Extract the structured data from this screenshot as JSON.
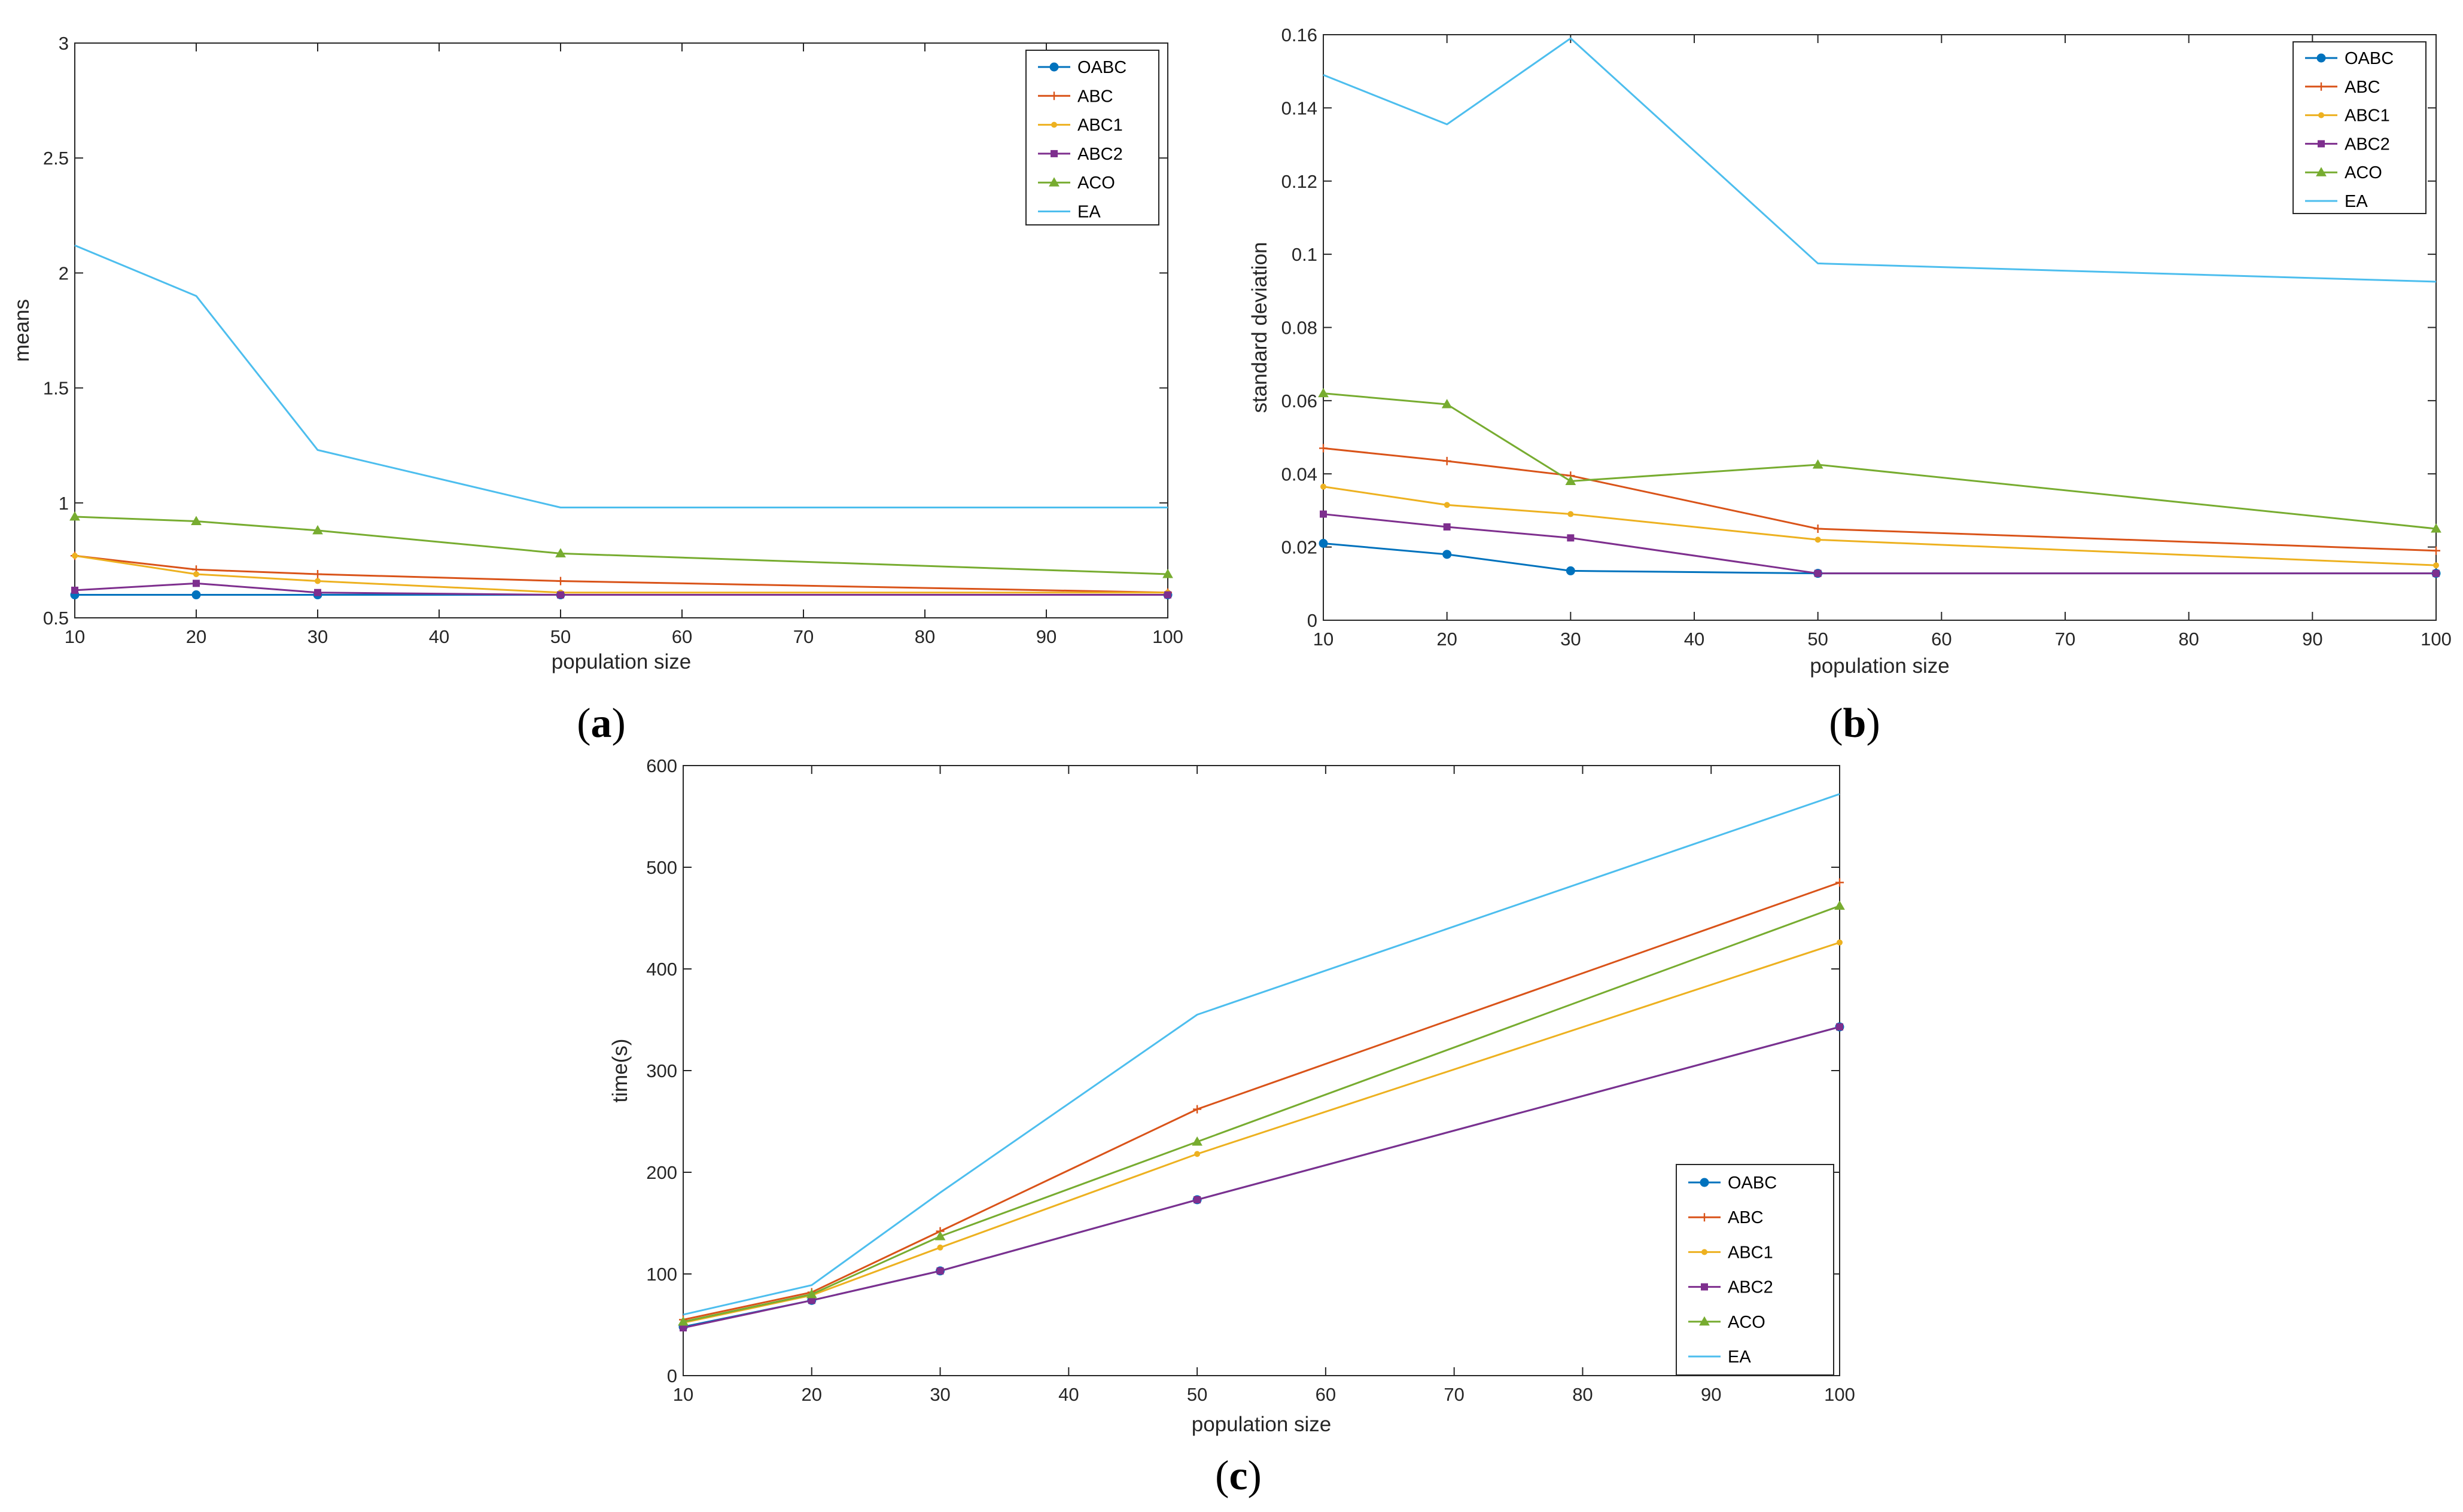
{
  "chart_data": [
    {
      "type": "line",
      "panel_label": "(a)",
      "panel_letter": "a",
      "xlabel": "population size",
      "ylabel": "means",
      "xlim": [
        10,
        100
      ],
      "ylim": [
        0.5,
        3
      ],
      "xticks": [
        10,
        20,
        30,
        40,
        50,
        60,
        70,
        80,
        90,
        100
      ],
      "yticks": [
        0.5,
        1,
        1.5,
        2,
        2.5,
        3
      ],
      "ytick_labels": [
        "0.5",
        "1",
        "1.5",
        "2",
        "2.5",
        "3"
      ],
      "legend_position": "top-right",
      "x": [
        10,
        20,
        30,
        50,
        100
      ],
      "series": [
        {
          "name": "OABC",
          "color": "#0072BD",
          "marker": "circle",
          "values": [
            0.6,
            0.6,
            0.6,
            0.6,
            0.6
          ]
        },
        {
          "name": "ABC",
          "color": "#D95319",
          "marker": "plus",
          "values": [
            0.77,
            0.71,
            0.69,
            0.66,
            0.61
          ]
        },
        {
          "name": "ABC1",
          "color": "#EDB120",
          "marker": "dot",
          "values": [
            0.77,
            0.69,
            0.66,
            0.61,
            0.61
          ]
        },
        {
          "name": "ABC2",
          "color": "#7E2F8E",
          "marker": "square",
          "values": [
            0.62,
            0.65,
            0.61,
            0.6,
            0.6
          ]
        },
        {
          "name": "ACO",
          "color": "#77AC30",
          "marker": "triangle",
          "values": [
            0.94,
            0.92,
            0.88,
            0.78,
            0.69
          ]
        },
        {
          "name": "EA",
          "color": "#4DBEEE",
          "marker": "none",
          "values": [
            2.12,
            1.9,
            1.23,
            0.98,
            0.98
          ]
        }
      ]
    },
    {
      "type": "line",
      "panel_label": "(b)",
      "panel_letter": "b",
      "xlabel": "population size",
      "ylabel": "standard deviation",
      "xlim": [
        10,
        100
      ],
      "ylim": [
        0,
        0.16
      ],
      "xticks": [
        10,
        20,
        30,
        40,
        50,
        60,
        70,
        80,
        90,
        100
      ],
      "yticks": [
        0,
        0.02,
        0.04,
        0.06,
        0.08,
        0.1,
        0.12,
        0.14,
        0.16
      ],
      "ytick_labels": [
        "0",
        "0.02",
        "0.04",
        "0.06",
        "0.08",
        "0.1",
        "0.12",
        "0.14",
        "0.16"
      ],
      "legend_position": "top-right",
      "x": [
        10,
        20,
        30,
        50,
        100
      ],
      "series": [
        {
          "name": "OABC",
          "color": "#0072BD",
          "marker": "circle",
          "values": [
            0.021,
            0.018,
            0.0135,
            0.0128,
            0.0128
          ]
        },
        {
          "name": "ABC",
          "color": "#D95319",
          "marker": "plus",
          "values": [
            0.047,
            0.0435,
            0.0395,
            0.025,
            0.019
          ]
        },
        {
          "name": "ABC1",
          "color": "#EDB120",
          "marker": "dot",
          "values": [
            0.0365,
            0.0315,
            0.029,
            0.022,
            0.015
          ]
        },
        {
          "name": "ABC2",
          "color": "#7E2F8E",
          "marker": "square",
          "values": [
            0.029,
            0.0255,
            0.0225,
            0.0128,
            0.0128
          ]
        },
        {
          "name": "ACO",
          "color": "#77AC30",
          "marker": "triangle",
          "values": [
            0.062,
            0.059,
            0.038,
            0.0425,
            0.025
          ]
        },
        {
          "name": "EA",
          "color": "#4DBEEE",
          "marker": "none",
          "values": [
            0.149,
            0.1355,
            0.159,
            0.0975,
            0.0925
          ]
        }
      ]
    },
    {
      "type": "line",
      "panel_label": "(c)",
      "panel_letter": "c",
      "xlabel": "population size",
      "ylabel": "time(s)",
      "xlim": [
        10,
        100
      ],
      "ylim": [
        0,
        600
      ],
      "xticks": [
        10,
        20,
        30,
        40,
        50,
        60,
        70,
        80,
        90,
        100
      ],
      "yticks": [
        0,
        100,
        200,
        300,
        400,
        500,
        600
      ],
      "ytick_labels": [
        "0",
        "100",
        "200",
        "300",
        "400",
        "500",
        "600"
      ],
      "legend_position": "bottom-right",
      "x": [
        10,
        20,
        30,
        50,
        100
      ],
      "series": [
        {
          "name": "OABC",
          "color": "#0072BD",
          "marker": "circle",
          "values": [
            48,
            74,
            103,
            173,
            343
          ]
        },
        {
          "name": "ABC",
          "color": "#D95319",
          "marker": "plus",
          "values": [
            55,
            82,
            142,
            262,
            485
          ]
        },
        {
          "name": "ABC1",
          "color": "#EDB120",
          "marker": "dot",
          "values": [
            52,
            79,
            126,
            218,
            426
          ]
        },
        {
          "name": "ABC2",
          "color": "#7E2F8E",
          "marker": "square",
          "values": [
            47,
            74,
            103,
            173,
            343
          ]
        },
        {
          "name": "ACO",
          "color": "#77AC30",
          "marker": "triangle",
          "values": [
            53,
            80,
            137,
            230,
            462
          ]
        },
        {
          "name": "EA",
          "color": "#4DBEEE",
          "marker": "none",
          "values": [
            60,
            89,
            180,
            355,
            572
          ]
        }
      ]
    }
  ]
}
